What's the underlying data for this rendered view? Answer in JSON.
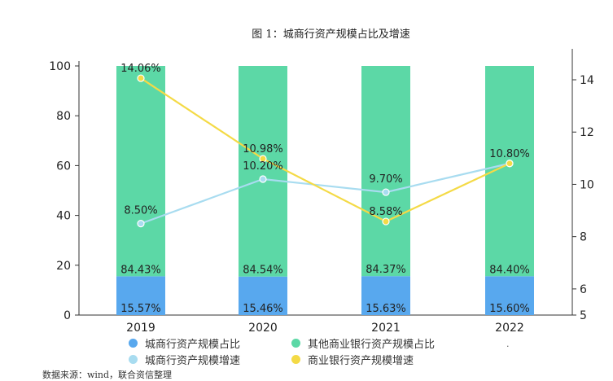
{
  "chart_data": {
    "type": "bar",
    "title": "图 1：城商行资产规模占比及增速",
    "categories": [
      "2019",
      "2020",
      "2021",
      "2022"
    ],
    "left_axis": {
      "ylim": [
        0,
        100
      ],
      "ticks": [
        0,
        20,
        40,
        60,
        80,
        100
      ]
    },
    "right_axis": {
      "ylim": [
        5,
        15
      ],
      "ticks": [
        5,
        6,
        8,
        10,
        12,
        14
      ]
    },
    "stacked_series": [
      {
        "name": "城商行资产规模占比",
        "values": [
          15.57,
          15.46,
          15.63,
          15.6
        ],
        "labels": [
          "15.57%",
          "15.46%",
          "15.63%",
          "15.60%"
        ],
        "color": "#58a8ee"
      },
      {
        "name": "其他商业银行资产规模占比",
        "values": [
          84.43,
          84.54,
          84.37,
          84.4
        ],
        "labels": [
          "84.43%",
          "84.54%",
          "84.37%",
          "84.40%"
        ],
        "color": "#5cd8a6"
      }
    ],
    "line_series": [
      {
        "name": "城商行资产规模增速",
        "values": [
          8.5,
          10.2,
          9.7,
          10.8
        ],
        "labels": [
          "8.50%",
          "10.20%",
          "9.70%",
          "10.80%"
        ],
        "color": "#a8dcf0"
      },
      {
        "name": "商业银行资产规模增速",
        "values": [
          14.06,
          10.98,
          8.58,
          10.8
        ],
        "labels": [
          "14.06%",
          "10.98%",
          "8.58%",
          "10.80%"
        ],
        "color": "#f4da46"
      }
    ],
    "legend_position": "bottom"
  },
  "legend_order": [
    {
      "label": "城商行资产规模占比",
      "color": "#58a8ee"
    },
    {
      "label": "其他商业银行资产规模占比",
      "color": "#5cd8a6"
    },
    {
      "label": "城商行资产规模增速",
      "color": "#a8dcf0"
    },
    {
      "label": "商业银行资产规模增速",
      "color": "#f4da46"
    }
  ],
  "source_note": "数据来源：wind，联合资信整理",
  "stray_mark": "."
}
